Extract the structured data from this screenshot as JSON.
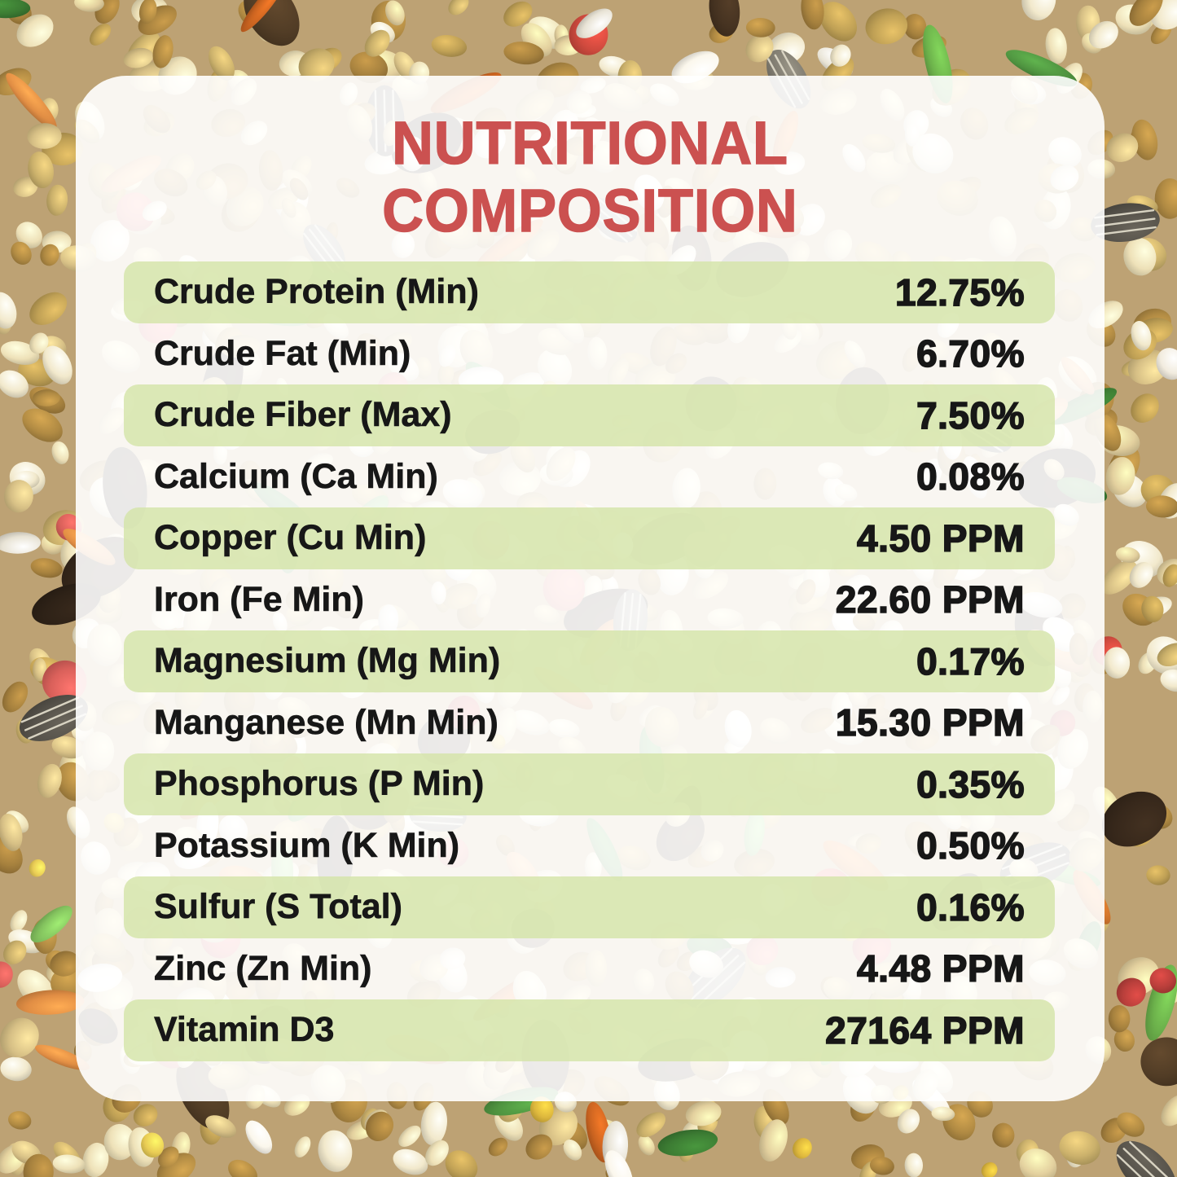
{
  "title": {
    "line1": "NUTRITIONAL",
    "line2": "COMPOSITION"
  },
  "colors": {
    "title_red": "#cb5150",
    "row_green": "#dde8c3",
    "card_white": "#f6f4ef",
    "text_black": "#171717"
  },
  "table": {
    "rows": [
      {
        "label": "Crude Protein (Min)",
        "value": "12.75%",
        "highlighted": true
      },
      {
        "label": "Crude Fat (Min)",
        "value": "6.70%",
        "highlighted": false
      },
      {
        "label": "Crude Fiber (Max)",
        "value": "7.50%",
        "highlighted": true
      },
      {
        "label": "Calcium (Ca Min)",
        "value": "0.08%",
        "highlighted": false
      },
      {
        "label": "Copper (Cu Min)",
        "value": "4.50 PPM",
        "highlighted": true
      },
      {
        "label": "Iron (Fe Min)",
        "value": "22.60 PPM",
        "highlighted": false
      },
      {
        "label": "Magnesium (Mg Min)",
        "value": "0.17%",
        "highlighted": true
      },
      {
        "label": "Manganese (Mn Min)",
        "value": "15.30 PPM",
        "highlighted": false
      },
      {
        "label": "Phosphorus (P Min)",
        "value": "0.35%",
        "highlighted": true
      },
      {
        "label": "Potassium (K Min)",
        "value": "0.50%",
        "highlighted": false
      },
      {
        "label": "Sulfur (S Total)",
        "value": "0.16%",
        "highlighted": true
      },
      {
        "label": "Zinc (Zn Min)",
        "value": "4.48 PPM",
        "highlighted": false
      },
      {
        "label": "Vitamin D3",
        "value": "27164 PPM",
        "highlighted": true
      }
    ]
  }
}
